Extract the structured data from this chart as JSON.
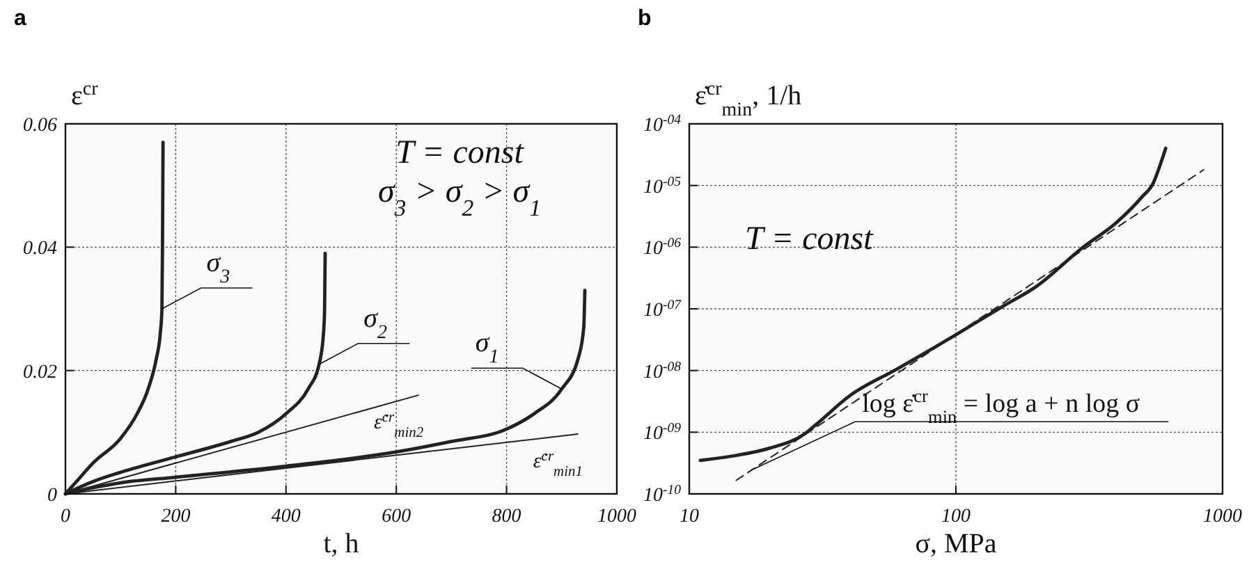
{
  "chart_data": [
    {
      "type": "line",
      "title": "a",
      "xlabel": "t, h",
      "ylabel": "ε$^{cr}$",
      "xlim": [
        0,
        1000
      ],
      "ylim": [
        0,
        0.06
      ],
      "xticks": [
        0,
        200,
        400,
        600,
        800,
        1000
      ],
      "yticks": [
        0,
        0.02,
        0.04,
        0.06
      ],
      "grid": true,
      "annotations": [
        "T = const",
        "σ$_{3}$ > σ$_{2}$ > σ$_{1}$",
        {
          "text": "ε̇$^{cr}$$_{min2}$",
          "x": 640,
          "y": 0.016
        },
        {
          "text": "ε̇$^{cr}$$_{min1}$",
          "x": 929,
          "y": 0.0097
        }
      ],
      "series": [
        {
          "name": "σ$_{3}$",
          "color": "#222222",
          "x": [
            0,
            20,
            50,
            100,
            130,
            150,
            165,
            172,
            175,
            176,
            177
          ],
          "values": [
            0,
            0.002,
            0.005,
            0.009,
            0.013,
            0.017,
            0.022,
            0.026,
            0.03,
            0.04,
            0.057
          ]
        },
        {
          "name": "σ$_{2}$",
          "color": "#222222",
          "x": [
            0,
            50,
            100,
            200,
            300,
            350,
            400,
            440,
            460,
            468,
            470,
            471
          ],
          "values": [
            0,
            0.002,
            0.0035,
            0.006,
            0.0085,
            0.01,
            0.013,
            0.017,
            0.021,
            0.026,
            0.03,
            0.039
          ]
        },
        {
          "name": "σ$_{1}$",
          "color": "#222222",
          "x": [
            0,
            50,
            100,
            200,
            400,
            600,
            700,
            800,
            850,
            900,
            930,
            940,
            942
          ],
          "values": [
            0,
            0.001,
            0.0018,
            0.0027,
            0.0045,
            0.0068,
            0.0085,
            0.0105,
            0.013,
            0.017,
            0.022,
            0.027,
            0.033
          ]
        },
        {
          "color": "#222222",
          "x": [
            0,
            640
          ],
          "values": [
            0,
            0.016
          ]
        },
        {
          "color": "#222222",
          "x": [
            0,
            929
          ],
          "values": [
            0,
            0.0097
          ]
        }
      ]
    },
    {
      "type": "line",
      "title": "b",
      "xlabel": "σ, MPa",
      "ylabel": "ε̇$^{cr}$$_{min}$, 1/h",
      "log": "xy",
      "xlim": [
        10,
        1000
      ],
      "ylim": [
        1e-10,
        0.0001
      ],
      "xticks": [
        10,
        100,
        1000
      ],
      "yticks": [
        {
          "value": 1e-10,
          "label": "10$^{-10}$"
        },
        {
          "value": 1e-09,
          "label": "10$^{-09}$"
        },
        {
          "value": 1e-08,
          "label": "10$^{-08}$"
        },
        {
          "value": 1e-07,
          "label": "10$^{-07}$"
        },
        {
          "value": 1e-06,
          "label": "10$^{-06}$"
        },
        {
          "value": 1e-05,
          "label": "10$^{-05}$"
        },
        {
          "value": 0.0001,
          "label": "10$^{-04}$"
        }
      ],
      "grid": true,
      "annotations": [
        "T = const",
        {
          "text": "log ε̇$^{cr}$$_{min}$ = log a + n log σ",
          "x": 17,
          "y": 2.4e-10
        }
      ],
      "series": [
        {
          "color": "#222222",
          "x": [
            11,
            15,
            20,
            27,
            30,
            40,
            60,
            100,
            150,
            200,
            300,
            400,
            500,
            550,
            580,
            612
          ],
          "values": [
            3.5e-10,
            4.2e-10,
            5.5e-10,
            9.3e-10,
            1.35e-09,
            3.9e-09,
            1.05e-08,
            3.8e-08,
            1.1e-07,
            2.3e-07,
            1e-06,
            2.5e-06,
            6.6e-06,
            1.1e-05,
            2e-05,
            4e-05
          ]
        },
        {
          "color": "#222222",
          "line_style": "dashed",
          "x": [
            15,
            850
          ],
          "values": [
            1.66e-10,
            1.8e-05
          ]
        }
      ]
    }
  ]
}
